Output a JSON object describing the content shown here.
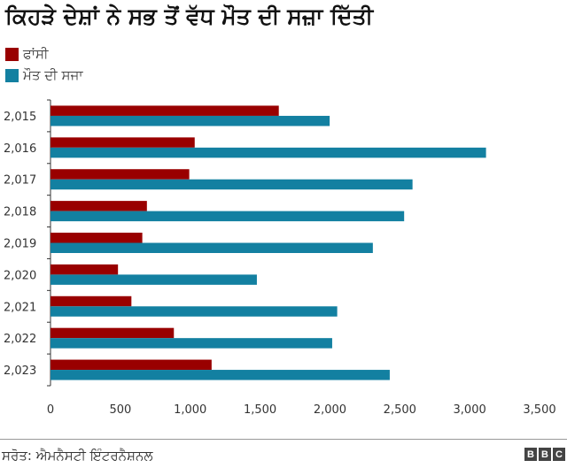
{
  "chart_data": {
    "type": "bar",
    "orientation": "horizontal",
    "title": "ਕਿਹੜੇ ਦੇਸ਼ਾਂ ਨੇ ਸਭ ਤੋਂ ਵੱਧ ਮੌਤ ਦੀ ਸਜ਼ਾ ਦਿੱਤੀ",
    "categories": [
      "2,015",
      "2,016",
      "2,017",
      "2,018",
      "2,019",
      "2,020",
      "2,021",
      "2,022",
      "2,023"
    ],
    "series": [
      {
        "name": "ਫਾਂਸੀ",
        "color": "#990000",
        "values": [
          1634,
          1032,
          993,
          690,
          657,
          483,
          579,
          883,
          1153
        ]
      },
      {
        "name": "ਮੌਤ ਦੀ ਸਜਾ",
        "color": "#1380a1",
        "values": [
          1998,
          3117,
          2591,
          2531,
          2307,
          1477,
          2052,
          2016,
          2428
        ]
      }
    ],
    "xlim": [
      0,
      3500
    ],
    "xticks": [
      "0",
      "500",
      "1,000",
      "1,500",
      "2,000",
      "2,500",
      "3,000",
      "3,500"
    ],
    "legend_position": "top-left",
    "grid": false
  },
  "footer": {
    "source": "ਸਰੋਤ: ਐਮਨੈਸਟੀ ਇੰਟਰਨੈਸ਼ਨਲ",
    "logo": [
      "B",
      "B",
      "C"
    ]
  }
}
